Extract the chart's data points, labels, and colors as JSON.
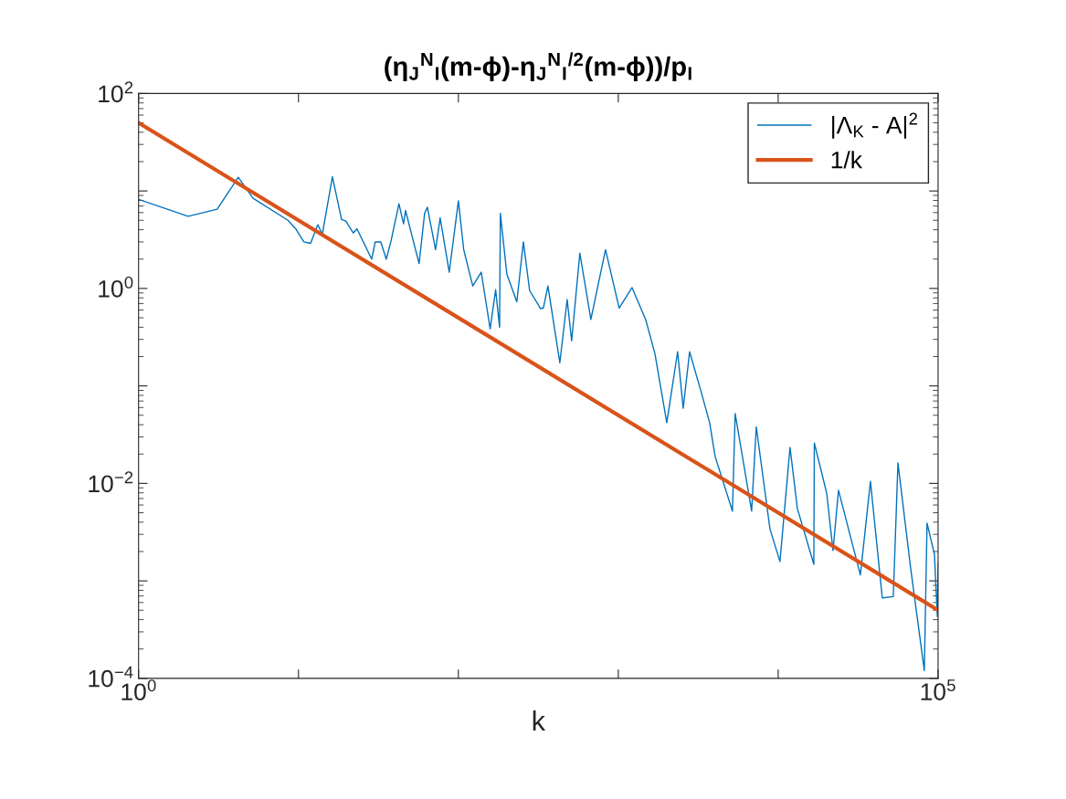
{
  "chart_data": {
    "type": "line",
    "title": "(η$_{J}$$^{N}$$_{I}$(m-ϕ)-η$_{J}$$^{N}$$_{I}$$^{/2}$(m-ϕ))/p$_{I}$",
    "xlabel": "k",
    "log": "xy",
    "xlim": [
      1,
      100000
    ],
    "ylim": [
      0.0001,
      100
    ],
    "xticks": [
      {
        "value": 1,
        "label": "10$^{0}$"
      },
      {
        "value": 10,
        "label": null
      },
      {
        "value": 100,
        "label": null
      },
      {
        "value": 1000,
        "label": null
      },
      {
        "value": 10000,
        "label": null
      },
      {
        "value": 100000,
        "label": "10$^{5}$"
      }
    ],
    "yticks": [
      {
        "value": 0.0001,
        "label": "10$^{−4}$"
      },
      {
        "value": 0.001,
        "label": null
      },
      {
        "value": 0.01,
        "label": "10$^{−2}$"
      },
      {
        "value": 0.1,
        "label": null
      },
      {
        "value": 1,
        "label": "10$^{0}$"
      },
      {
        "value": 10,
        "label": null
      },
      {
        "value": 100,
        "label": "10$^{2}$"
      }
    ],
    "grid": false,
    "legend": "top right",
    "series": [
      {
        "name": "|Λ$_{K}$ - A|$^{2}$",
        "color": "#0072bd",
        "x": [
          1,
          2.04,
          3.1,
          4.2,
          5.2,
          8.6,
          9.6,
          10.8,
          11.9,
          13.2,
          14.1,
          16.3,
          18.6,
          19.8,
          22,
          23.2,
          28.7,
          30.2,
          32.7,
          35.4,
          37.8,
          42.5,
          45.4,
          46.7,
          56.8,
          61.5,
          64,
          72,
          76.9,
          87.7,
          100,
          108,
          123,
          139,
          158,
          171,
          181,
          183,
          201,
          232,
          255,
          279,
          327,
          340,
          363,
          431,
          479,
          511,
          575,
          674,
          832,
          1013,
          1219,
          1484,
          1694,
          2011,
          2350,
          2547,
          2793,
          3311,
          3725,
          4036,
          5176,
          5383,
          6823,
          7295,
          8886,
          10260,
          11860,
          13190,
          16710,
          16830,
          20090,
          22030,
          23840,
          32660,
          37760,
          44770,
          52480,
          56100,
          67450,
          82040,
          85310,
          94850,
          99000,
          100000
        ],
        "values": [
          8.2,
          5.5,
          6.5,
          13.8,
          8.4,
          5.0,
          4.1,
          3.0,
          2.9,
          4.5,
          3.6,
          14,
          5.1,
          4.9,
          3.7,
          4.1,
          2.0,
          3.0,
          3.0,
          2.0,
          3.0,
          7.4,
          4.6,
          6.3,
          1.8,
          5.9,
          6.8,
          2.5,
          5.3,
          1.47,
          7.9,
          2.5,
          1.06,
          1.47,
          0.385,
          0.97,
          0.4,
          5.9,
          1.4,
          0.73,
          3.0,
          0.95,
          0.62,
          0.63,
          1.06,
          0.173,
          0.77,
          0.29,
          2.3,
          0.48,
          2.5,
          0.63,
          1.02,
          0.48,
          0.215,
          0.042,
          0.224,
          0.059,
          0.224,
          0.085,
          0.042,
          0.0188,
          0.0052,
          0.052,
          0.0052,
          0.038,
          0.0034,
          0.00158,
          0.0234,
          0.0055,
          0.00148,
          0.026,
          0.008,
          0.00205,
          0.0085,
          0.00115,
          0.0105,
          0.00067,
          0.00069,
          0.0162,
          0.00133,
          0.00012,
          0.0039,
          0.00188,
          0.00043,
          0.0015
        ]
      },
      {
        "name": "1/k",
        "color": "#d95319",
        "x": [
          1,
          100000
        ],
        "values": [
          50,
          0.0005
        ]
      }
    ]
  }
}
